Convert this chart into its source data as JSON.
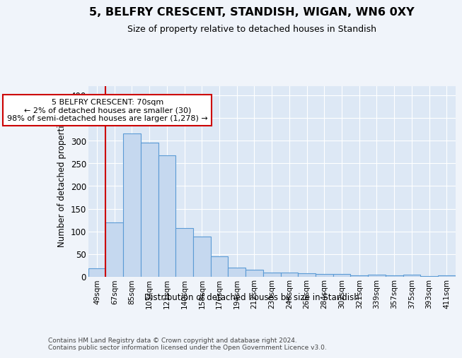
{
  "title": "5, BELFRY CRESCENT, STANDISH, WIGAN, WN6 0XY",
  "subtitle": "Size of property relative to detached houses in Standish",
  "xlabel": "Distribution of detached houses by size in Standish",
  "ylabel": "Number of detached properties",
  "bar_labels": [
    "49sqm",
    "67sqm",
    "85sqm",
    "103sqm",
    "121sqm",
    "140sqm",
    "158sqm",
    "176sqm",
    "194sqm",
    "212sqm",
    "230sqm",
    "248sqm",
    "266sqm",
    "284sqm",
    "302sqm",
    "321sqm",
    "339sqm",
    "357sqm",
    "375sqm",
    "393sqm",
    "411sqm"
  ],
  "bar_values": [
    18,
    120,
    315,
    295,
    267,
    108,
    89,
    45,
    20,
    15,
    10,
    9,
    8,
    7,
    6,
    3,
    5,
    3,
    5,
    2,
    3
  ],
  "bar_color": "#c5d8ef",
  "bar_edge_color": "#5b9bd5",
  "background_color": "#f0f4fa",
  "plot_bg_color": "#dde8f5",
  "grid_color": "#ffffff",
  "red_line_x": 1.5,
  "annotation_line1": "5 BELFRY CRESCENT: 70sqm",
  "annotation_line2": "← 2% of detached houses are smaller (30)",
  "annotation_line3": "98% of semi-detached houses are larger (1,278) →",
  "annotation_box_color": "#ffffff",
  "annotation_box_edge": "#cc0000",
  "ylim": [
    0,
    420
  ],
  "yticks": [
    0,
    50,
    100,
    150,
    200,
    250,
    300,
    350,
    400
  ],
  "footer": "Contains HM Land Registry data © Crown copyright and database right 2024.\nContains public sector information licensed under the Open Government Licence v3.0."
}
